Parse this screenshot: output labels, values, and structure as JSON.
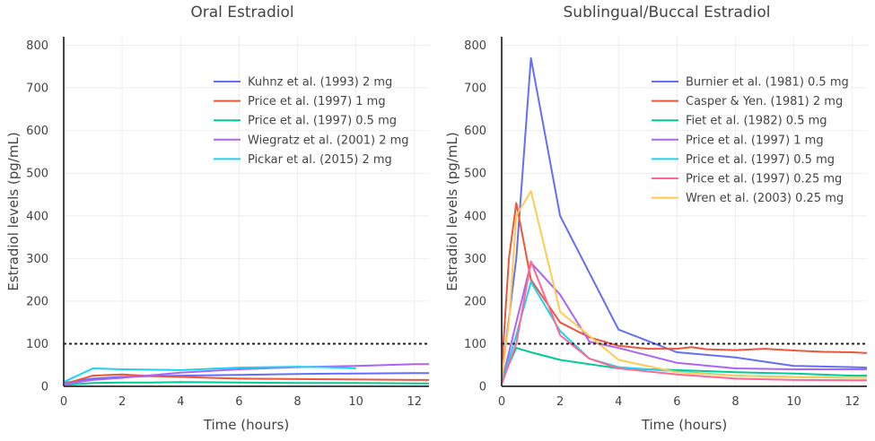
{
  "chart_data": [
    {
      "type": "line",
      "title": "Oral Estradiol",
      "xlabel": "Time (hours)",
      "ylabel": "Estradiol levels (pg/mL)",
      "xlim": [
        0,
        12.5
      ],
      "ylim": [
        0,
        820
      ],
      "xticks": [
        "0",
        "2",
        "4",
        "6",
        "8",
        "10",
        "12"
      ],
      "yticks": [
        "0",
        "100",
        "200",
        "300",
        "400",
        "500",
        "600",
        "700",
        "800"
      ],
      "reference_line": 100,
      "legend_position": "top-right",
      "series": [
        {
          "name": "Kuhnz et al. (1993) 2 mg",
          "color": "#636efa",
          "x": [
            0,
            1,
            2,
            3,
            4,
            6,
            8,
            10,
            12,
            12.5
          ],
          "y": [
            8,
            18,
            22,
            24,
            25,
            27,
            29,
            30,
            31,
            31
          ]
        },
        {
          "name": "Price et al. (1997) 1 mg",
          "color": "#ef553b",
          "x": [
            0,
            1,
            2,
            3,
            4,
            6,
            8,
            10,
            12,
            12.5
          ],
          "y": [
            5,
            25,
            28,
            24,
            22,
            18,
            17,
            16,
            15,
            15
          ]
        },
        {
          "name": "Price et al. (1997) 0.5 mg",
          "color": "#00cc96",
          "x": [
            0,
            1,
            2,
            3,
            4,
            6,
            8,
            10,
            12,
            12.5
          ],
          "y": [
            3,
            8,
            9,
            9,
            10,
            9,
            8,
            8,
            7,
            7
          ]
        },
        {
          "name": "Wiegratz et al. (2001) 2 mg",
          "color": "#ab63fa",
          "x": [
            0,
            1,
            2,
            4,
            6,
            8,
            10,
            12,
            12.5
          ],
          "y": [
            5,
            15,
            20,
            32,
            40,
            45,
            48,
            52,
            52
          ]
        },
        {
          "name": "Pickar et al. (2015) 2 mg",
          "color": "#19d3f3",
          "x": [
            0,
            1,
            2,
            4,
            6,
            8,
            9,
            10
          ],
          "y": [
            10,
            42,
            40,
            38,
            44,
            46,
            45,
            42
          ]
        }
      ]
    },
    {
      "type": "line",
      "title": "Sublingual/Buccal Estradiol",
      "xlabel": "Time (hours)",
      "ylabel": "Estradiol levels (pg/mL)",
      "xlim": [
        0,
        12.5
      ],
      "ylim": [
        0,
        820
      ],
      "xticks": [
        "0",
        "2",
        "4",
        "6",
        "8",
        "10",
        "12"
      ],
      "yticks": [
        "0",
        "100",
        "200",
        "300",
        "400",
        "500",
        "600",
        "700",
        "800"
      ],
      "reference_line": 100,
      "legend_position": "top-right",
      "series": [
        {
          "name": "Burnier et al. (1981) 0.5 mg",
          "color": "#636efa",
          "x": [
            0,
            0.5,
            1,
            2,
            4,
            6,
            8,
            10,
            12,
            12.5
          ],
          "y": [
            20,
            300,
            770,
            400,
            133,
            80,
            68,
            48,
            45,
            44
          ]
        },
        {
          "name": "Casper & Yen. (1981) 2 mg",
          "color": "#ef553b",
          "x": [
            0,
            0.25,
            0.5,
            1,
            2,
            3,
            4,
            5,
            6,
            6.5,
            7,
            8,
            9,
            10,
            11,
            12,
            12.5
          ],
          "y": [
            40,
            300,
            430,
            250,
            150,
            115,
            95,
            88,
            88,
            92,
            87,
            85,
            88,
            84,
            81,
            80,
            78
          ]
        },
        {
          "name": "Fiet et al. (1982) 0.5 mg",
          "color": "#00cc96",
          "x": [
            0,
            0.5,
            1,
            2,
            4,
            6,
            8,
            10,
            12,
            12.5
          ],
          "y": [
            15,
            90,
            80,
            62,
            42,
            38,
            33,
            30,
            25,
            25
          ]
        },
        {
          "name": "Price et al. (1997) 1 mg",
          "color": "#ab63fa",
          "x": [
            0,
            0.5,
            1,
            2,
            3,
            4,
            6,
            8,
            10,
            12,
            12.5
          ],
          "y": [
            10,
            150,
            290,
            215,
            105,
            90,
            55,
            42,
            40,
            40,
            40
          ]
        },
        {
          "name": "Price et al. (1997) 0.5 mg",
          "color": "#19d3f3",
          "x": [
            0,
            0.5,
            1,
            2,
            3,
            4,
            6,
            8,
            10,
            12,
            12.5
          ],
          "y": [
            8,
            120,
            245,
            130,
            65,
            45,
            35,
            25,
            22,
            20,
            20
          ]
        },
        {
          "name": "Price et al. (1997) 0.25 mg",
          "color": "#ff6692",
          "x": [
            0,
            0.5,
            1,
            2,
            3,
            4,
            6,
            8,
            10,
            12,
            12.5
          ],
          "y": [
            5,
            100,
            293,
            120,
            65,
            42,
            28,
            18,
            15,
            14,
            14
          ]
        },
        {
          "name": "Wren et al. (2003) 0.25 mg",
          "color": "#fecb52",
          "x": [
            0,
            0.25,
            0.5,
            1,
            2,
            4,
            6,
            8,
            10,
            12,
            12.5
          ],
          "y": [
            20,
            150,
            400,
            458,
            175,
            62,
            33,
            25,
            22,
            20,
            20
          ]
        }
      ]
    }
  ]
}
